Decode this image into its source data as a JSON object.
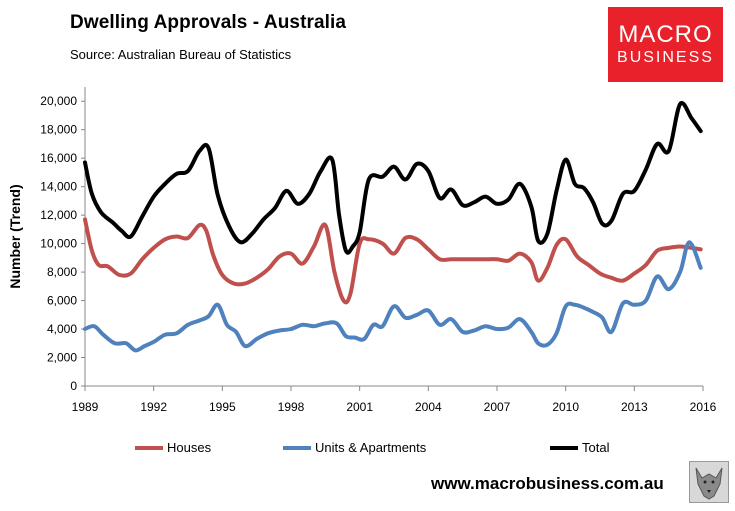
{
  "header": {
    "title": "Dwelling Approvals - Australia",
    "source": "Source:   Australian Bureau of Statistics"
  },
  "logo": {
    "line1": "MACRO",
    "line2": "BUSINESS",
    "color": "#e8212b"
  },
  "footer": {
    "url": "www.macrobusiness.com.au",
    "icon": "wolf-icon"
  },
  "chart_data": {
    "type": "line",
    "title": "Dwelling Approvals - Australia",
    "ylabel": "Number (Trend)",
    "xlabel": "",
    "xlim": [
      1989,
      2016
    ],
    "ylim": [
      0,
      21000
    ],
    "xticks": [
      "1989",
      "1992",
      "1995",
      "1998",
      "2001",
      "2004",
      "2007",
      "2010",
      "2013",
      "2016"
    ],
    "yticks": [
      "0",
      "2,000",
      "4,000",
      "6,000",
      "8,000",
      "10,000",
      "12,000",
      "14,000",
      "16,000",
      "18,000",
      "20,000"
    ],
    "legend_position": "bottom",
    "grid": false,
    "series": [
      {
        "name": "Houses",
        "color": "#c0504d",
        "x": [
          1989,
          1989.3,
          1989.6,
          1990,
          1990.5,
          1991,
          1991.5,
          1992,
          1992.5,
          1993,
          1993.5,
          1994,
          1994.3,
          1994.6,
          1995,
          1995.5,
          1996,
          1996.5,
          1997,
          1997.5,
          1998,
          1998.5,
          1999,
          1999.5,
          1999.9,
          2000.3,
          2000.6,
          2001,
          2001.4,
          2002,
          2002.5,
          2003,
          2003.5,
          2004,
          2004.5,
          2005,
          2005.5,
          2006,
          2006.5,
          2007,
          2007.5,
          2008,
          2008.5,
          2008.8,
          2009.2,
          2009.6,
          2010,
          2010.5,
          2011,
          2011.5,
          2012,
          2012.5,
          2013,
          2013.5,
          2014,
          2014.5,
          2015,
          2015.5,
          2015.9
        ],
        "y": [
          11700,
          9500,
          8500,
          8400,
          7800,
          7900,
          8900,
          9700,
          10300,
          10500,
          10400,
          11300,
          10900,
          9200,
          7800,
          7200,
          7200,
          7600,
          8200,
          9100,
          9300,
          8600,
          9800,
          11300,
          8000,
          6000,
          6500,
          10000,
          10300,
          10000,
          9300,
          10400,
          10300,
          9600,
          8900,
          8900,
          8900,
          8900,
          8900,
          8900,
          8800,
          9300,
          8700,
          7400,
          8300,
          9900,
          10300,
          9100,
          8500,
          7900,
          7600,
          7400,
          7900,
          8500,
          9500,
          9700,
          9800,
          9700,
          9600
        ]
      },
      {
        "name": "Units & Apartments",
        "color": "#4f81bd",
        "x": [
          1989,
          1989.4,
          1989.8,
          1990.3,
          1990.8,
          1991.2,
          1991.6,
          1992,
          1992.5,
          1993,
          1993.5,
          1994,
          1994.4,
          1994.8,
          1995.2,
          1995.6,
          1996,
          1996.5,
          1997,
          1997.5,
          1998,
          1998.5,
          1999,
          1999.5,
          2000,
          2000.4,
          2000.8,
          2001.2,
          2001.6,
          2002,
          2002.5,
          2003,
          2003.5,
          2004,
          2004.5,
          2005,
          2005.5,
          2006,
          2006.5,
          2007,
          2007.5,
          2008,
          2008.5,
          2008.8,
          2009.2,
          2009.6,
          2010,
          2010.4,
          2010.8,
          2011.2,
          2011.6,
          2012,
          2012.5,
          2013,
          2013.5,
          2014,
          2014.5,
          2015,
          2015.4,
          2015.9
        ],
        "y": [
          4000,
          4200,
          3600,
          3000,
          3000,
          2500,
          2800,
          3100,
          3600,
          3700,
          4300,
          4600,
          4900,
          5700,
          4300,
          3800,
          2800,
          3300,
          3700,
          3900,
          4000,
          4300,
          4200,
          4400,
          4400,
          3500,
          3400,
          3300,
          4300,
          4200,
          5600,
          4800,
          5000,
          5300,
          4300,
          4700,
          3800,
          3900,
          4200,
          4000,
          4100,
          4700,
          3800,
          3000,
          2900,
          3700,
          5600,
          5700,
          5500,
          5200,
          4800,
          3800,
          5800,
          5700,
          6000,
          7700,
          6800,
          8000,
          10100,
          8300
        ]
      },
      {
        "name": "Total",
        "color": "#000000",
        "x": [
          1989,
          1989.3,
          1989.7,
          1990.2,
          1990.6,
          1991,
          1991.5,
          1992,
          1992.5,
          1993,
          1993.5,
          1994,
          1994.4,
          1994.8,
          1995.3,
          1995.8,
          1996.3,
          1996.8,
          1997.3,
          1997.8,
          1998.3,
          1998.8,
          1999.3,
          1999.8,
          2000.1,
          2000.4,
          2000.7,
          2001,
          2001.4,
          2002,
          2002.5,
          2003,
          2003.5,
          2004,
          2004.5,
          2005,
          2005.5,
          2006,
          2006.5,
          2007,
          2007.5,
          2008,
          2008.5,
          2008.8,
          2009.2,
          2009.6,
          2010,
          2010.4,
          2010.8,
          2011.2,
          2011.6,
          2012,
          2012.5,
          2013,
          2013.5,
          2014,
          2014.5,
          2015,
          2015.5,
          2015.9
        ],
        "y": [
          15700,
          13500,
          12200,
          11500,
          10900,
          10500,
          11900,
          13300,
          14200,
          14900,
          15100,
          16500,
          16700,
          13400,
          11200,
          10100,
          10700,
          11700,
          12500,
          13700,
          12800,
          13500,
          15100,
          15900,
          12000,
          9500,
          9800,
          10800,
          14500,
          14700,
          15400,
          14500,
          15600,
          15100,
          13200,
          13800,
          12700,
          12900,
          13300,
          12800,
          13100,
          14200,
          12600,
          10200,
          10700,
          13700,
          15900,
          14200,
          13900,
          12900,
          11400,
          11600,
          13500,
          13700,
          15200,
          17000,
          16500,
          19800,
          18800,
          17900
        ]
      }
    ]
  }
}
